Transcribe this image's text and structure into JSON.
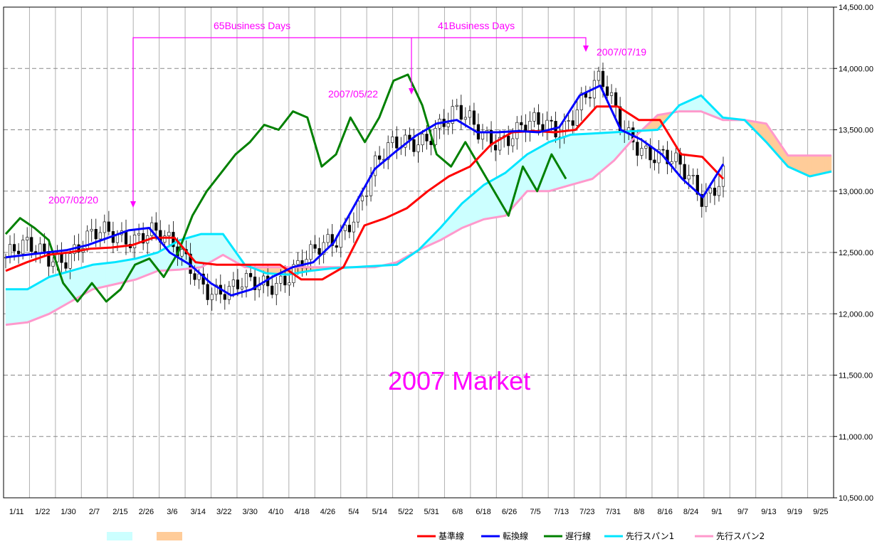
{
  "chart_data": {
    "type": "line",
    "title": "",
    "xlabel": "",
    "ylabel": "",
    "ylim": [
      10500,
      14500
    ],
    "y_ticks": [
      "10,500.00",
      "11,000.00",
      "11,500.00",
      "12,000.00",
      "12,500.00",
      "13,000.00",
      "13,500.00",
      "14,000.00",
      "14,500.00"
    ],
    "y_tick_values": [
      10500,
      11000,
      11500,
      12000,
      12500,
      13000,
      13500,
      14000,
      14500
    ],
    "x_ticks": [
      "1/11",
      "1/22",
      "1/30",
      "2/7",
      "2/15",
      "2/26",
      "3/6",
      "3/14",
      "3/22",
      "3/30",
      "4/10",
      "4/18",
      "4/26",
      "5/4",
      "5/14",
      "5/22",
      "5/31",
      "6/8",
      "6/18",
      "6/26",
      "7/5",
      "7/13",
      "7/23",
      "7/31",
      "8/8",
      "8/16",
      "8/24",
      "9/1",
      "9/7",
      "9/13",
      "9/19",
      "9/25"
    ],
    "grid": true,
    "legend_position": "bottom",
    "kumo_legend": [
      {
        "color": "#ccffff"
      },
      {
        "color": "#ffcc99"
      }
    ],
    "series": [
      {
        "name": "基準線",
        "color": "#ff0000",
        "values": [
          12350,
          12420,
          12480,
          12500,
          12530,
          12540,
          12560,
          12620,
          12620,
          12420,
          12400,
          12400,
          12400,
          12400,
          12280,
          12280,
          12380,
          12720,
          12780,
          12860,
          13000,
          13120,
          13200,
          13380,
          13480,
          13490,
          13480,
          13500,
          13690,
          13690,
          13580,
          13580,
          13300,
          13280,
          13100
        ]
      },
      {
        "name": "転換線",
        "color": "#0000ff",
        "values": [
          12460,
          12480,
          12500,
          12520,
          12560,
          12620,
          12680,
          12700,
          12500,
          12400,
          12250,
          12150,
          12200,
          12300,
          12380,
          12420,
          12580,
          12880,
          13180,
          13320,
          13450,
          13550,
          13580,
          13480,
          13480,
          13490,
          13480,
          13520,
          13780,
          13860,
          13500,
          13420,
          13300,
          13100,
          12950,
          13220
        ]
      },
      {
        "name": "遅行線",
        "color": "#008000",
        "values": [
          12650,
          12780,
          12700,
          12600,
          12250,
          12100,
          12250,
          12100,
          12200,
          12400,
          12450,
          12300,
          12500,
          12800,
          13000,
          13150,
          13300,
          13400,
          13540,
          13500,
          13650,
          13600,
          13200,
          13300,
          13600,
          13400,
          13600,
          13900,
          13950,
          13700,
          13300,
          13200,
          13400,
          13200,
          13000,
          12800,
          13200,
          13000,
          13300,
          13100
        ]
      },
      {
        "name": "先行スパン1",
        "color": "#00e5ff",
        "values": [
          12200,
          12200,
          12300,
          12350,
          12400,
          12420,
          12450,
          12500,
          12600,
          12650,
          12650,
          12400,
          12330,
          12320,
          12350,
          12370,
          12380,
          12390,
          12400,
          12520,
          12700,
          12900,
          13050,
          13150,
          13300,
          13400,
          13460,
          13470,
          13480,
          13490,
          13500,
          13700,
          13780,
          13600,
          13580,
          13400,
          13200,
          13120,
          13160
        ]
      },
      {
        "name": "先行スパン2",
        "color": "#ff99cc",
        "values": [
          11910,
          11930,
          12000,
          12100,
          12200,
          12240,
          12280,
          12350,
          12360,
          12380,
          12480,
          12380,
          12380,
          12380,
          12380,
          12380,
          12380,
          12380,
          12420,
          12520,
          12600,
          12700,
          12770,
          12800,
          13000,
          13000,
          13050,
          13100,
          13250,
          13450,
          13620,
          13650,
          13650,
          13580,
          13580,
          13550,
          13290,
          13290,
          13290
        ]
      }
    ],
    "annotations": [
      {
        "text": "65Business Days"
      },
      {
        "text": "41Business Days"
      },
      {
        "text": "2007/02/20"
      },
      {
        "text": "2007/05/22"
      },
      {
        "text": "2007/07/19"
      },
      {
        "text": "2007 Market"
      }
    ]
  }
}
